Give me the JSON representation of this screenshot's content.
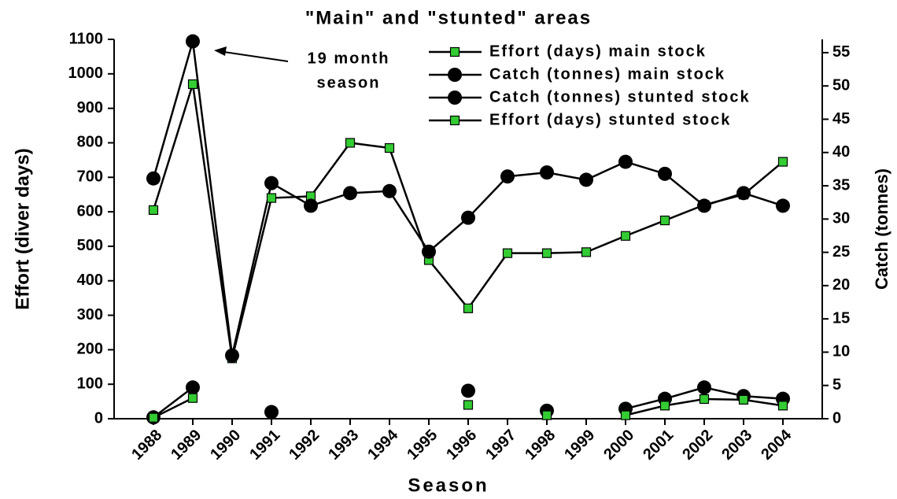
{
  "chart_data": {
    "type": "line",
    "title": "\"Main\" and \"stunted\" areas",
    "x_label": "Season",
    "y_label": "Effort (diver days)",
    "y2_label": "Catch (tonnes)",
    "annotation": [
      "19 month",
      "season"
    ],
    "x": [
      1988,
      1989,
      1990,
      1991,
      1992,
      1993,
      1994,
      1995,
      1996,
      1997,
      1998,
      1999,
      2000,
      2001,
      2002,
      2003,
      2004
    ],
    "xlim": [
      1987,
      2005
    ],
    "xticks": [
      1988,
      1989,
      1990,
      1991,
      1992,
      1993,
      1994,
      1995,
      1996,
      1997,
      1998,
      1999,
      2000,
      2001,
      2002,
      2003,
      2004
    ],
    "ylim": [
      0,
      1100
    ],
    "yticks": [
      0,
      100,
      200,
      300,
      400,
      500,
      600,
      700,
      800,
      900,
      1000,
      1100
    ],
    "y2lim": [
      0,
      57
    ],
    "y2ticks": [
      0,
      5,
      10,
      15,
      20,
      25,
      30,
      35,
      40,
      45,
      50,
      55
    ],
    "legend": "upper right",
    "series": [
      {
        "name": "Effort (days) main stock",
        "color": "#33cc33",
        "marker": "square",
        "axis": "y",
        "values": [
          605,
          970,
          175,
          640,
          645,
          800,
          785,
          460,
          320,
          480,
          480,
          483,
          530,
          575,
          620,
          650,
          745
        ]
      },
      {
        "name": "Catch (tonnes) main stock",
        "color": "#000000",
        "marker": "circle",
        "axis": "y2",
        "values": [
          36.1,
          56.7,
          9.5,
          35.4,
          32.0,
          33.9,
          34.2,
          25.1,
          30.2,
          36.4,
          37.0,
          35.9,
          38.6,
          36.8,
          32.0,
          33.9,
          32.0
        ]
      },
      {
        "name": "Catch (tonnes) stunted stock",
        "color": "#000000",
        "marker": "circle",
        "axis": "y2",
        "values": [
          0.2,
          4.7,
          null,
          1.0,
          null,
          null,
          null,
          null,
          4.2,
          null,
          1.2,
          null,
          1.5,
          3.0,
          4.7,
          3.4,
          3.0
        ]
      },
      {
        "name": "Effort (days) stunted stock",
        "color": "#33cc33",
        "marker": "square",
        "axis": "y",
        "values": [
          3,
          60,
          null,
          null,
          null,
          null,
          null,
          null,
          40,
          null,
          10,
          null,
          10,
          38,
          57,
          55,
          38
        ]
      }
    ]
  }
}
